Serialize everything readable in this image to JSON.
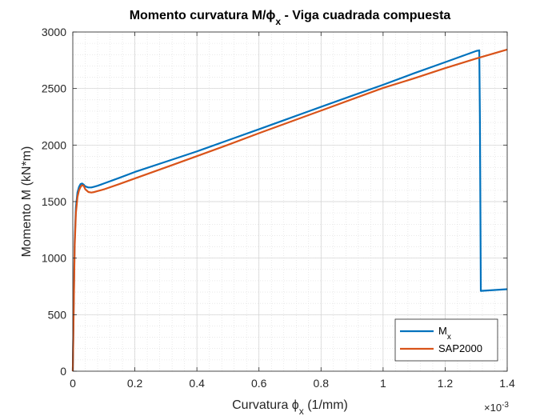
{
  "chart_data": {
    "type": "line",
    "title": "Momento curvatura M/ϕ",
    "title_subscript": "x",
    "title_suffix": " - Viga cuadrada compuesta",
    "xlabel_prefix": "Curvatura ϕ",
    "xlabel_subscript": "x",
    "xlabel_suffix": " (1/mm)",
    "ylabel": "Momento M (kN*m)",
    "x_multiplier_base": "×10",
    "x_multiplier_exponent": "-3",
    "xlim": [
      0,
      1.4
    ],
    "ylim": [
      0,
      3000
    ],
    "xticks": [
      0,
      0.2,
      0.4,
      0.6,
      0.8,
      1,
      1.2,
      1.4
    ],
    "xtick_labels": [
      "0",
      "0.2",
      "0.4",
      "0.6",
      "0.8",
      "1",
      "1.2",
      "1.4"
    ],
    "yticks": [
      0,
      500,
      1000,
      1500,
      2000,
      2500,
      3000
    ],
    "ytick_labels": [
      "0",
      "500",
      "1000",
      "1500",
      "2000",
      "2500",
      "3000"
    ],
    "grid": true,
    "minor_grid": true,
    "legend_position": "bottom-right",
    "series": [
      {
        "name": "M",
        "name_subscript": "x",
        "color": "#0072BD",
        "x": [
          0,
          0.003,
          0.006,
          0.01,
          0.015,
          0.02,
          0.025,
          0.03,
          0.035,
          0.04,
          0.05,
          0.06,
          0.07,
          0.08,
          0.1,
          0.15,
          0.2,
          0.3,
          0.4,
          0.5,
          0.6,
          0.7,
          0.8,
          0.9,
          1.0,
          1.1,
          1.2,
          1.3,
          1.31,
          1.312,
          1.315,
          1.4
        ],
        "y": [
          0,
          600,
          1150,
          1450,
          1580,
          1630,
          1655,
          1660,
          1650,
          1635,
          1625,
          1625,
          1632,
          1640,
          1660,
          1710,
          1762,
          1853,
          1944,
          2042,
          2140,
          2239,
          2338,
          2436,
          2533,
          2635,
          2733,
          2832,
          2838,
          2250,
          710,
          725
        ]
      },
      {
        "name": "SAP2000",
        "color": "#D95319",
        "x": [
          0,
          0.003,
          0.006,
          0.01,
          0.015,
          0.02,
          0.025,
          0.03,
          0.035,
          0.04,
          0.05,
          0.06,
          0.07,
          0.08,
          0.1,
          0.15,
          0.2,
          0.3,
          0.4,
          0.5,
          0.6,
          0.7,
          0.8,
          0.9,
          1.0,
          1.1,
          1.2,
          1.3,
          1.4
        ],
        "y": [
          0,
          550,
          1100,
          1400,
          1540,
          1600,
          1630,
          1645,
          1640,
          1610,
          1585,
          1580,
          1585,
          1593,
          1608,
          1655,
          1705,
          1803,
          1902,
          2002,
          2105,
          2205,
          2305,
          2405,
          2505,
          2590,
          2680,
          2765,
          2845
        ]
      }
    ]
  }
}
